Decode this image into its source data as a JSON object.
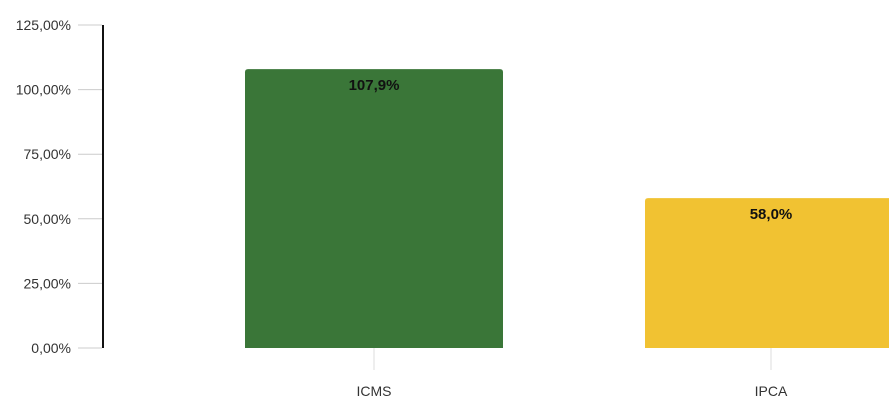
{
  "chart_data": {
    "type": "bar",
    "categories": [
      "ICMS",
      "IPCA"
    ],
    "values": [
      107.9,
      58.0
    ],
    "data_labels": [
      "107,9%",
      "58,0%"
    ],
    "bar_colors": [
      "#3a7638",
      "#f1c232"
    ],
    "ylim": [
      0,
      125
    ],
    "y_ticks": [
      0,
      25,
      50,
      75,
      100,
      125
    ],
    "y_tick_labels": [
      "0,00%",
      "25,00%",
      "50,00%",
      "75,00%",
      "100,00%",
      "125,00%"
    ],
    "title": "",
    "xlabel": "",
    "ylabel": "",
    "grid": false,
    "legend": "none"
  }
}
